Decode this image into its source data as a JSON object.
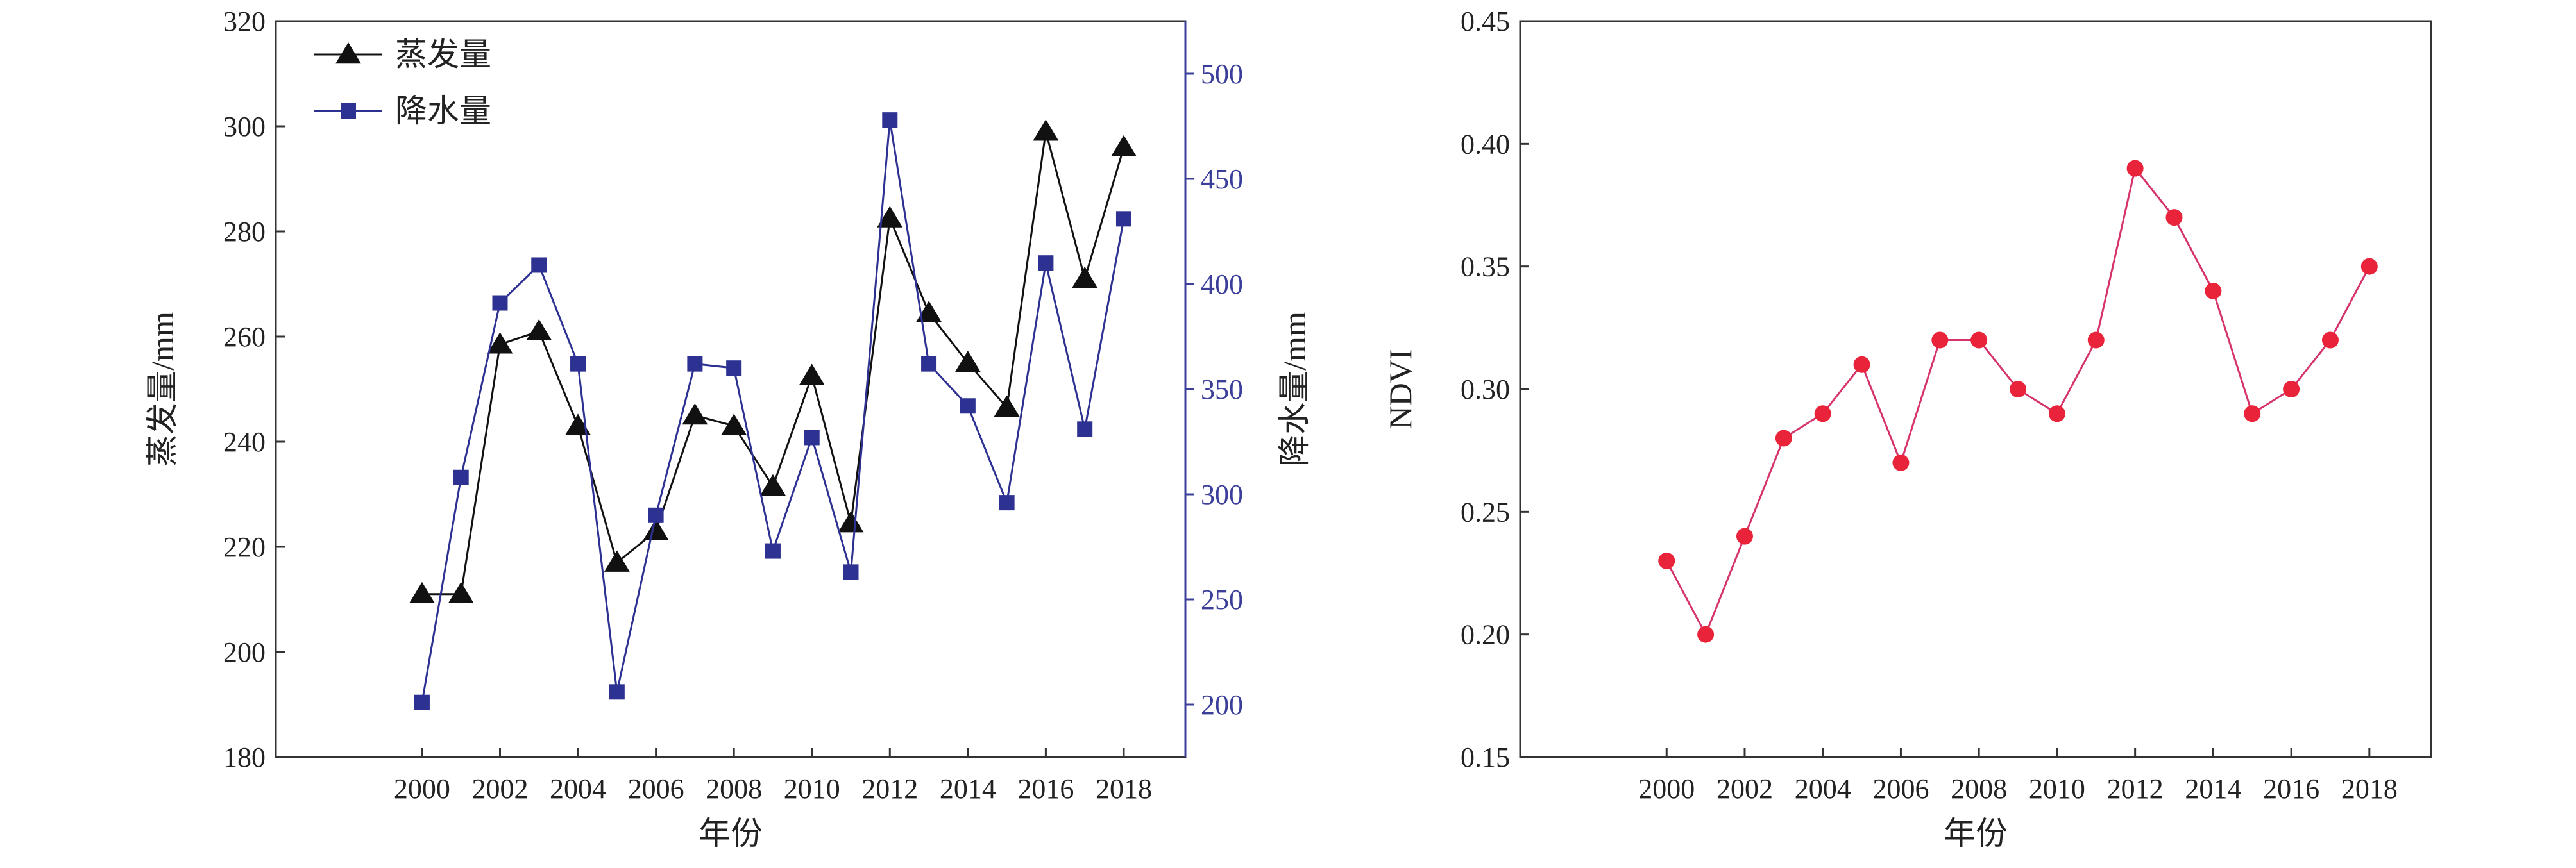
{
  "chart_data": [
    {
      "type": "line",
      "xlabel": "年份",
      "ylabel": "蒸发量/mm",
      "y2label": "降水量/mm",
      "x": [
        2000,
        2001,
        2002,
        2003,
        2004,
        2005,
        2006,
        2007,
        2008,
        2009,
        2010,
        2011,
        2012,
        2013,
        2014,
        2015,
        2016,
        2017,
        2018
      ],
      "xticks": [
        "2000",
        "2002",
        "2004",
        "2006",
        "2008",
        "2010",
        "2012",
        "2014",
        "2016",
        "2018"
      ],
      "ylim": [
        180,
        320
      ],
      "yticks": [
        "180",
        "200",
        "220",
        "240",
        "260",
        "280",
        "300",
        "320"
      ],
      "y2lim": [
        175,
        525
      ],
      "y2ticks": [
        "200",
        "250",
        "300",
        "350",
        "400",
        "450",
        "500"
      ],
      "grid": false,
      "legend_position": "top-left",
      "series": [
        {
          "name": "蒸发量",
          "axis": "left",
          "marker": "triangle",
          "color": "#111111",
          "values": [
            211,
            211,
            258.5,
            261,
            243,
            217,
            223,
            245,
            243,
            231.5,
            252.5,
            224.5,
            282.5,
            264.5,
            255,
            246.5,
            299,
            271,
            296
          ]
        },
        {
          "name": "降水量",
          "axis": "right",
          "marker": "square",
          "color": "#2d3192",
          "values": [
            201,
            308,
            391,
            409,
            362,
            206,
            290,
            362,
            360,
            273,
            327,
            263,
            478,
            362,
            342,
            296,
            410,
            331,
            431
          ]
        }
      ],
      "right_axis_color": "#3b3f99"
    },
    {
      "type": "line",
      "xlabel": "年份",
      "ylabel": "NDVI",
      "x": [
        2000,
        2001,
        2002,
        2003,
        2004,
        2005,
        2006,
        2007,
        2008,
        2009,
        2010,
        2011,
        2012,
        2013,
        2014,
        2015,
        2016,
        2017,
        2018
      ],
      "xticks": [
        "2000",
        "2002",
        "2004",
        "2006",
        "2008",
        "2010",
        "2012",
        "2014",
        "2016",
        "2018"
      ],
      "ylim": [
        0.15,
        0.45
      ],
      "yticks": [
        "0.15",
        "0.20",
        "0.25",
        "0.30",
        "0.35",
        "0.40",
        "0.45"
      ],
      "grid": false,
      "series": [
        {
          "axis": "left",
          "marker": "circle",
          "color": "#e8233a",
          "line_color": "#d6336c",
          "values": [
            0.23,
            0.2,
            0.24,
            0.28,
            0.29,
            0.31,
            0.27,
            0.32,
            0.32,
            0.3,
            0.29,
            0.32,
            0.39,
            0.37,
            0.34,
            0.29,
            0.3,
            0.32,
            0.35
          ]
        }
      ]
    }
  ]
}
